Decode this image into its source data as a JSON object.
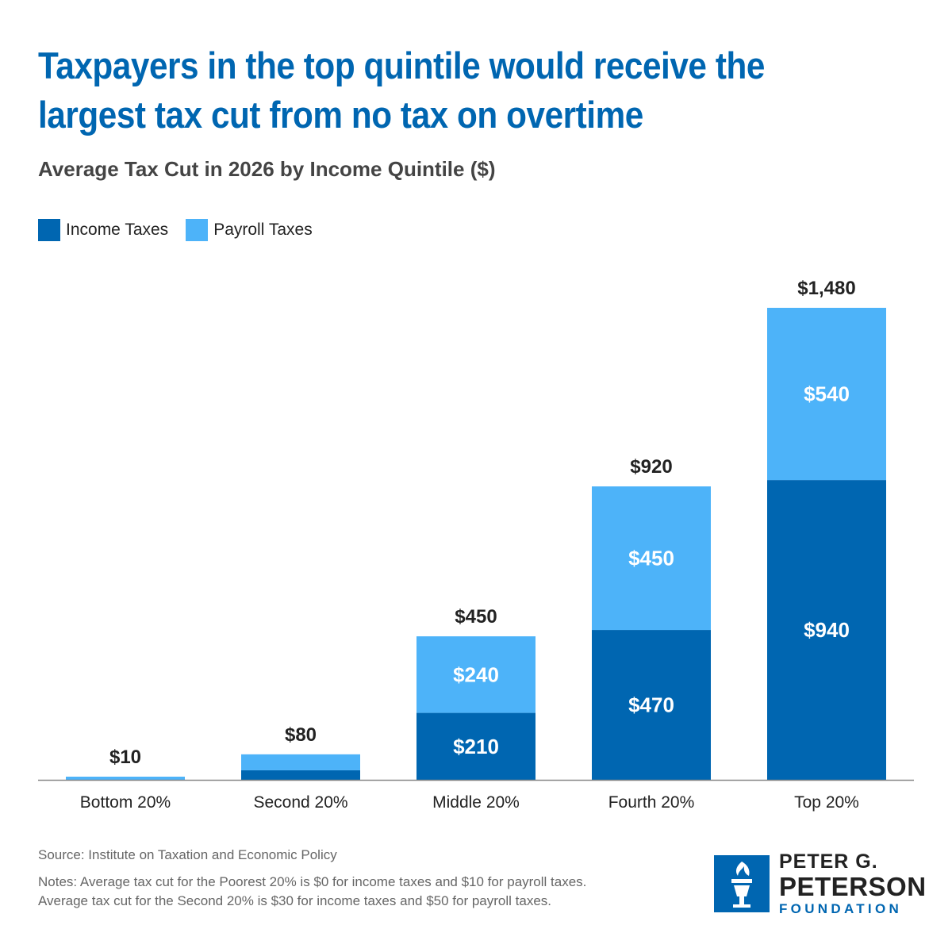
{
  "title": "Taxpayers in the top quintile would receive the largest tax cut from no tax on overtime",
  "subtitle": "Average Tax Cut in 2026 by Income Quintile ($)",
  "colors": {
    "income": "#0066b1",
    "payroll": "#4db3f9",
    "title": "#0066b1",
    "axis": "#888888"
  },
  "chart_data": {
    "type": "bar",
    "stacked": true,
    "categories": [
      "Bottom 20%",
      "Second 20%",
      "Middle 20%",
      "Fourth 20%",
      "Top 20%"
    ],
    "series": [
      {
        "name": "Income Taxes",
        "values": [
          0,
          30,
          210,
          470,
          940
        ],
        "data_labels": [
          "",
          "",
          "$210",
          "$470",
          "$940"
        ]
      },
      {
        "name": "Payroll Taxes",
        "values": [
          10,
          50,
          240,
          450,
          540
        ],
        "data_labels": [
          "",
          "",
          "$240",
          "$450",
          "$540"
        ]
      }
    ],
    "totals": [
      10,
      80,
      450,
      920,
      1480
    ],
    "total_labels": [
      "$10",
      "$80",
      "$450",
      "$920",
      "$1,480"
    ],
    "ylim": [
      0,
      1480
    ],
    "grid": false,
    "legend_position": "top-left"
  },
  "source": "Source: Institute on Taxation and Economic Policy",
  "notes": [
    "Notes: Average tax cut for the Poorest 20% is $0 for income taxes and $10 for payroll taxes.",
    "Average tax cut for the Second 20% is $30 for income taxes and $50 for payroll taxes."
  ],
  "logo": {
    "line1": "PETER G.",
    "line2": "PETERSON",
    "line3": "FOUNDATION",
    "icon": "torch-icon"
  }
}
